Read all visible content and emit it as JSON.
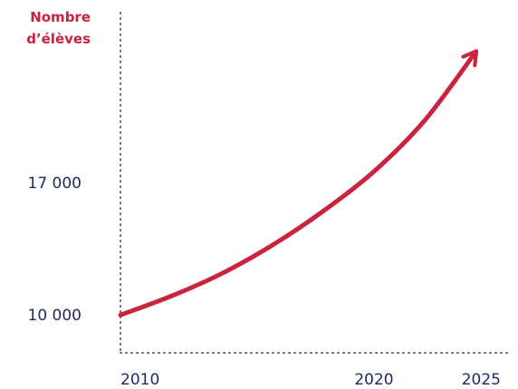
{
  "chart_data": {
    "type": "line",
    "ylabel": [
      "Nombre",
      "d’élèves"
    ],
    "y_ticks": [
      {
        "value": 10000,
        "label": "10 000"
      },
      {
        "value": 17000,
        "label": "17 000"
      }
    ],
    "x_ticks": [
      {
        "value": 2010,
        "label": "2010"
      },
      {
        "value": 2020,
        "label": "2020"
      },
      {
        "value": 2025,
        "label": "2025"
      }
    ],
    "xlim": [
      2010,
      2025
    ],
    "ylim": [
      8000,
      26000
    ],
    "series": [
      {
        "x": [
          2010,
          2012,
          2014,
          2016,
          2018,
          2020,
          2022,
          2024
        ],
        "y": [
          10000,
          11000,
          12200,
          13700,
          15500,
          17600,
          20300,
          23900
        ],
        "style": "arrow"
      }
    ],
    "grid": false,
    "colors": {
      "line": "#c8233f",
      "axis_title": "#c8233f",
      "ticks": "#1f2a5c",
      "axis": "#666666"
    }
  }
}
